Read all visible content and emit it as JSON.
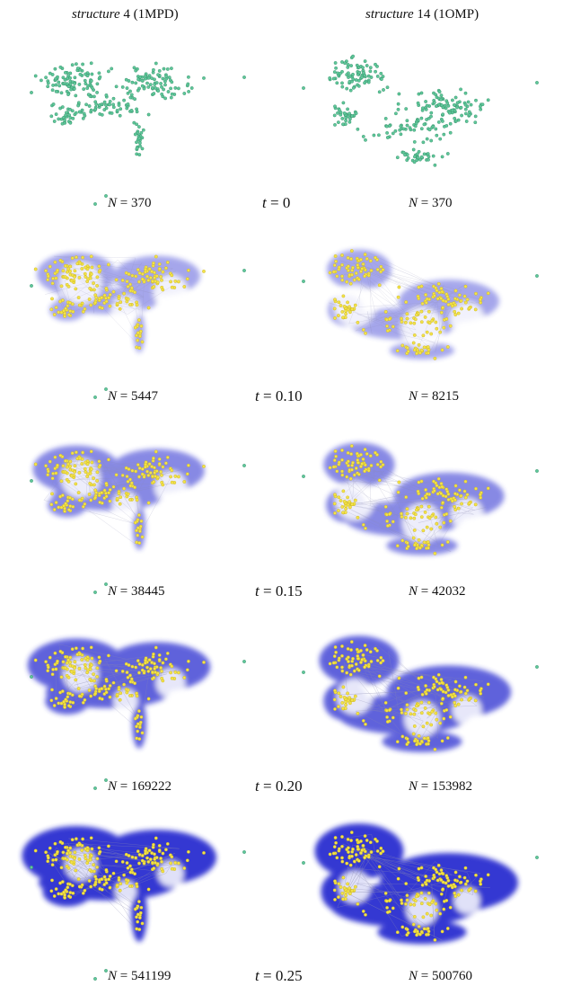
{
  "columns": [
    {
      "name": "structure",
      "number": "4",
      "code": "(1MPD)"
    },
    {
      "name": "structure",
      "number": "14",
      "code": "(1OMP)"
    }
  ],
  "rows": [
    {
      "t": "0",
      "n_left": "370",
      "n_right": "370",
      "level": 0.0
    },
    {
      "t": "0.10",
      "n_left": "5447",
      "n_right": "8215",
      "level": 0.25
    },
    {
      "t": "0.15",
      "n_left": "38445",
      "n_right": "42032",
      "level": 0.45
    },
    {
      "t": "0.20",
      "n_left": "169222",
      "n_right": "153982",
      "level": 0.72
    },
    {
      "t": "0.25",
      "n_left": "541199",
      "n_right": "500760",
      "level": 1.0
    }
  ],
  "symbols": {
    "n": "N",
    "t": "t",
    "eq": "="
  },
  "colors": {
    "point_initial": "#5fc79a",
    "point_stroke": "#2f8a63",
    "point_later": "#f2e24a",
    "fill": "#2a2fd0",
    "edge": "#8a8ab0"
  }
}
